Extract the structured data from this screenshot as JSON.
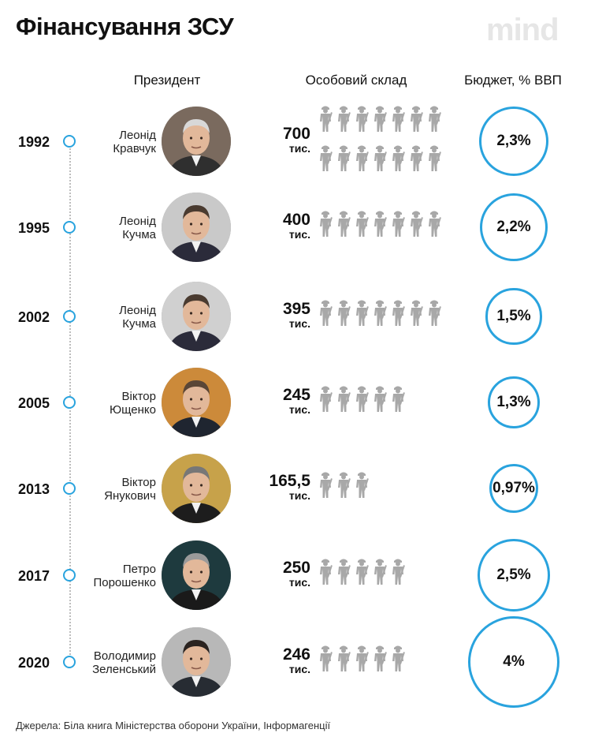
{
  "title": "Фінансування ЗСУ",
  "logo": "mind",
  "headers": {
    "president": "Президент",
    "personnel": "Особовий склад",
    "budget": "Бюджет, % ВВП"
  },
  "source": "Джерела: Біла книга Міністерства оборони України, Інформагенції",
  "colors": {
    "accent": "#29a3de",
    "soldier": "#a8a8a8",
    "timeline": "#bdbdbd"
  },
  "icons": [
    "soldier-icon",
    "timeline-dot-icon",
    "president-photo"
  ],
  "chart_data": {
    "type": "table",
    "columns": [
      "Президент",
      "Особовий склад",
      "Бюджет, % ВВП"
    ],
    "soldier_icon_unit_thousands": 50,
    "rows": [
      {
        "year": "1992",
        "name_line1": "Леонід",
        "name_line2": "Кравчук",
        "personnel": "700",
        "unit": "тис.",
        "personnel_value": 700,
        "budget": "2,3%",
        "budget_value": 2.3,
        "icons": 14
      },
      {
        "year": "1995",
        "name_line1": "Леонід",
        "name_line2": "Кучма",
        "personnel": "400",
        "unit": "тис.",
        "personnel_value": 400,
        "budget": "2,2%",
        "budget_value": 2.2,
        "icons": 7
      },
      {
        "year": "2002",
        "name_line1": "Леонід",
        "name_line2": "Кучма",
        "personnel": "395",
        "unit": "тис.",
        "personnel_value": 395,
        "budget": "1,5%",
        "budget_value": 1.5,
        "icons": 7
      },
      {
        "year": "2005",
        "name_line1": "Віктор",
        "name_line2": "Ющенко",
        "personnel": "245",
        "unit": "тис.",
        "personnel_value": 245,
        "budget": "1,3%",
        "budget_value": 1.3,
        "icons": 5
      },
      {
        "year": "2013",
        "name_line1": "Віктор",
        "name_line2": "Янукович",
        "personnel": "165,5",
        "unit": "тис.",
        "personnel_value": 165.5,
        "budget": "0,97%",
        "budget_value": 0.97,
        "icons": 3
      },
      {
        "year": "2017",
        "name_line1": "Петро",
        "name_line2": "Порошенко",
        "personnel": "250",
        "unit": "тис.",
        "personnel_value": 250,
        "budget": "2,5%",
        "budget_value": 2.5,
        "icons": 5
      },
      {
        "year": "2020",
        "name_line1": "Володимир",
        "name_line2": "Зеленський",
        "personnel": "246",
        "unit": "тис.",
        "personnel_value": 246,
        "budget": "4%",
        "budget_value": 4,
        "icons": 5
      }
    ]
  }
}
